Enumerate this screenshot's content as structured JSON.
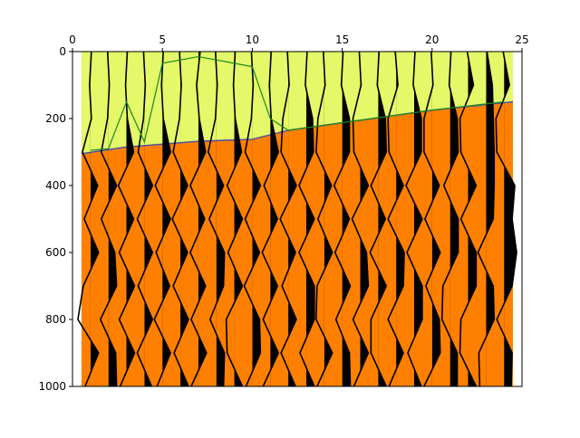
{
  "chart_data": {
    "type": "wiggle",
    "xlim": [
      0,
      25
    ],
    "xticks": [
      0,
      5,
      10,
      15,
      20,
      25
    ],
    "ylim": [
      1000,
      0
    ],
    "yticks": [
      0,
      200,
      400,
      600,
      800,
      1000
    ],
    "extent_x": [
      0.5,
      24.5
    ],
    "above_color": "#e4f86a",
    "below_color": "#ff8000",
    "trace_color": "#000000",
    "fill_color": "#000000",
    "interface": {
      "color": "#5050a0",
      "x": [
        0.5,
        3,
        7,
        10,
        12,
        16,
        20,
        24.5
      ],
      "y": [
        305,
        285,
        268,
        262,
        235,
        205,
        175,
        150
      ]
    },
    "picks": {
      "color": "#1a8a1a",
      "x": [
        1,
        2,
        3,
        4,
        5,
        7,
        10,
        11,
        12,
        16,
        20,
        24
      ],
      "y": [
        295,
        290,
        150,
        270,
        35,
        15,
        45,
        200,
        235,
        205,
        175,
        150
      ]
    },
    "t": [
      0,
      100,
      200,
      300,
      400,
      500,
      600,
      700,
      800,
      900,
      1000
    ],
    "series": [
      {
        "position": 1,
        "values": [
          0.05,
          -0.05,
          0.05,
          -0.45,
          0.4,
          -0.35,
          0.45,
          -0.4,
          -0.7,
          0.45,
          -0.3
        ]
      },
      {
        "position": 2,
        "values": [
          -0.05,
          0.05,
          -0.05,
          -0.4,
          0.45,
          -0.4,
          0.35,
          0.45,
          -0.45,
          0.4,
          0.45
        ]
      },
      {
        "position": 3,
        "values": [
          0.05,
          -0.05,
          0.05,
          0.4,
          -0.45,
          0.4,
          -0.4,
          0.45,
          -0.4,
          0.45,
          -0.35
        ]
      },
      {
        "position": 4,
        "values": [
          -0.05,
          0.05,
          -0.05,
          -0.35,
          0.45,
          -0.4,
          0.45,
          -0.35,
          0.45,
          -0.4,
          0.4
        ]
      },
      {
        "position": 5,
        "values": [
          0.05,
          -0.05,
          0.05,
          0.45,
          -0.4,
          0.45,
          -0.35,
          0.4,
          -0.45,
          0.45,
          -0.3
        ]
      },
      {
        "position": 6,
        "values": [
          -0.05,
          0.05,
          -0.05,
          -0.4,
          0.4,
          -0.45,
          0.4,
          -0.4,
          0.45,
          -0.35,
          0.45
        ]
      },
      {
        "position": 7,
        "values": [
          0.1,
          -0.1,
          0.05,
          0.4,
          -0.45,
          0.35,
          -0.45,
          0.4,
          -0.4,
          0.45,
          -0.4
        ]
      },
      {
        "position": 8,
        "values": [
          -0.05,
          0.05,
          -0.05,
          -0.45,
          0.4,
          -0.4,
          0.45,
          0.4,
          -0.35,
          0.45,
          0.4
        ]
      },
      {
        "position": 9,
        "values": [
          0.05,
          -0.05,
          0.05,
          0.4,
          -0.4,
          0.45,
          -0.35,
          0.45,
          -0.45,
          -0.4,
          0.45
        ]
      },
      {
        "position": 10,
        "values": [
          -0.05,
          0.05,
          -0.05,
          -0.4,
          0.45,
          -0.4,
          0.4,
          -0.45,
          0.4,
          0.45,
          -0.35
        ]
      },
      {
        "position": 11,
        "values": [
          0.05,
          -0.05,
          0.05,
          0.45,
          -0.35,
          0.4,
          -0.45,
          0.4,
          -0.4,
          0.45,
          -0.4
        ]
      },
      {
        "position": 12,
        "values": [
          -0.05,
          0.05,
          -0.3,
          -0.4,
          0.45,
          -0.45,
          0.4,
          -0.35,
          0.45,
          -0.4,
          0.4
        ]
      },
      {
        "position": 13,
        "values": [
          0.05,
          -0.05,
          0.35,
          0.4,
          -0.4,
          0.45,
          -0.4,
          0.45,
          0.45,
          -0.35,
          0.45
        ]
      },
      {
        "position": 14,
        "values": [
          -0.05,
          0.05,
          -0.35,
          -0.45,
          0.4,
          -0.35,
          0.45,
          -0.4,
          -0.45,
          0.45,
          -0.4
        ]
      },
      {
        "position": 15,
        "values": [
          0.05,
          -0.05,
          0.4,
          0.4,
          -0.45,
          0.4,
          -0.4,
          0.45,
          -0.35,
          0.4,
          0.45
        ]
      },
      {
        "position": 16,
        "values": [
          -0.05,
          0.05,
          -0.4,
          -0.35,
          0.45,
          -0.45,
          0.35,
          0.45,
          -0.4,
          0.45,
          -0.35
        ]
      },
      {
        "position": 17,
        "values": [
          0.05,
          -0.05,
          0.4,
          0.45,
          -0.4,
          0.4,
          -0.45,
          0.45,
          -0.4,
          -0.4,
          0.45
        ]
      },
      {
        "position": 18,
        "values": [
          -0.05,
          0.1,
          -0.45,
          -0.4,
          0.4,
          -0.45,
          0.45,
          0.4,
          -0.45,
          0.4,
          -0.4
        ]
      },
      {
        "position": 19,
        "values": [
          0.05,
          -0.05,
          0.4,
          0.4,
          -0.45,
          0.45,
          -0.4,
          0.45,
          0.45,
          -0.35,
          0.4
        ]
      },
      {
        "position": 20,
        "values": [
          -0.05,
          0.05,
          -0.45,
          -0.45,
          0.4,
          -0.4,
          0.45,
          -0.35,
          0.4,
          0.45,
          -0.45
        ]
      },
      {
        "position": 21,
        "values": [
          0.05,
          -0.05,
          0.4,
          0.45,
          -0.35,
          0.45,
          0.45,
          -0.4,
          -0.45,
          0.4,
          0.4
        ]
      },
      {
        "position": 22,
        "values": [
          -0.05,
          0.3,
          -0.45,
          -0.4,
          0.45,
          -0.4,
          0.45,
          0.45,
          -0.4,
          -0.45,
          0.45
        ]
      },
      {
        "position": 23,
        "values": [
          0.05,
          0.35,
          0.4,
          0.45,
          0.45,
          0.4,
          -0.45,
          0.4,
          0.45,
          -0.4,
          -0.35
        ]
      },
      {
        "position": 24,
        "values": [
          -0.05,
          0.3,
          -0.45,
          -0.4,
          0.6,
          0.45,
          0.7,
          0.45,
          -0.4,
          0.45,
          0.4
        ]
      }
    ]
  }
}
